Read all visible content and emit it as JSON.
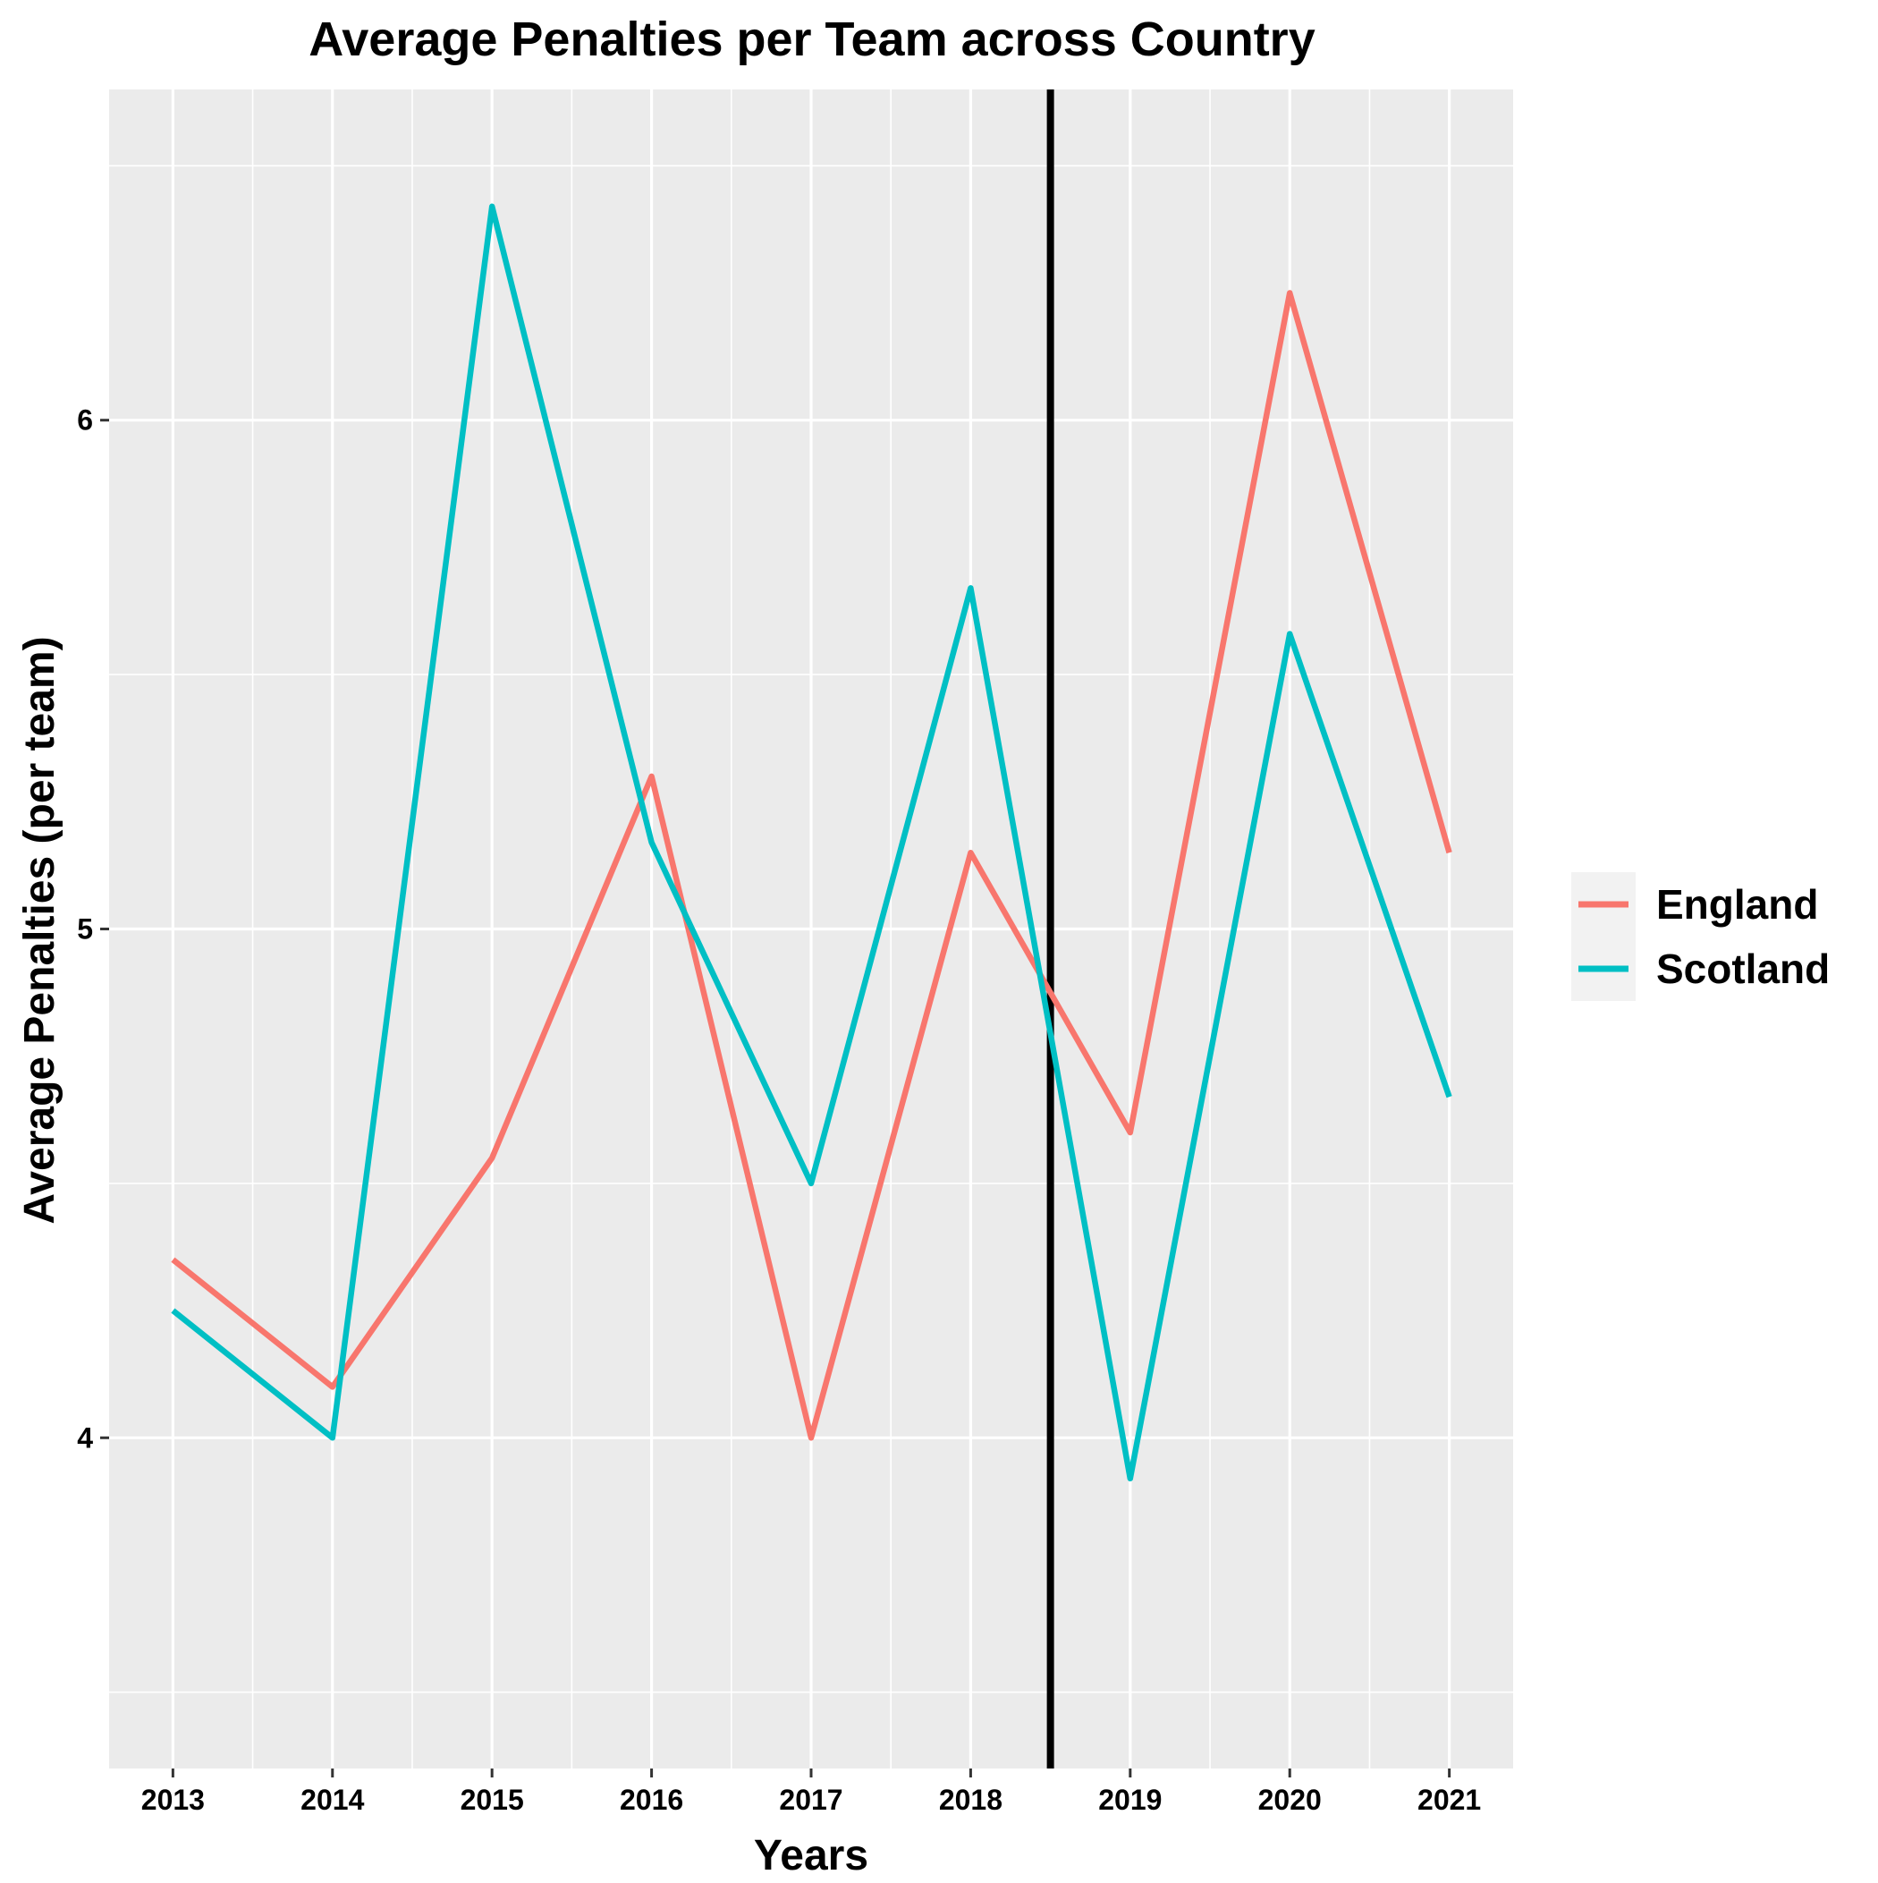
{
  "chart_data": {
    "type": "line",
    "title": "Average Penalties per Team across Country",
    "xlabel": "Years",
    "ylabel": "Average Penalties (per team)",
    "x": [
      2013,
      2014,
      2015,
      2016,
      2017,
      2018,
      2019,
      2020,
      2021
    ],
    "xlim": [
      2012.6,
      2021.4
    ],
    "ylim": [
      3.35,
      6.65
    ],
    "y_ticks": [
      4,
      5,
      6
    ],
    "x_tick_labels": [
      "2013",
      "2014",
      "2015",
      "2016",
      "2017",
      "2018",
      "2019",
      "2020",
      "2021"
    ],
    "y_tick_labels": [
      "4",
      "5",
      "6"
    ],
    "grid": true,
    "legend_position": "right",
    "series": [
      {
        "name": "England",
        "color": "#F8766D",
        "values": [
          4.35,
          4.1,
          4.55,
          5.3,
          4.0,
          5.15,
          4.6,
          6.25,
          5.15
        ]
      },
      {
        "name": "Scotland",
        "color": "#00BFC4",
        "values": [
          4.25,
          4.0,
          6.42,
          5.17,
          4.5,
          5.67,
          3.92,
          5.58,
          4.67
        ]
      }
    ],
    "vline": {
      "x": 2018.5,
      "color": "#000000"
    }
  }
}
